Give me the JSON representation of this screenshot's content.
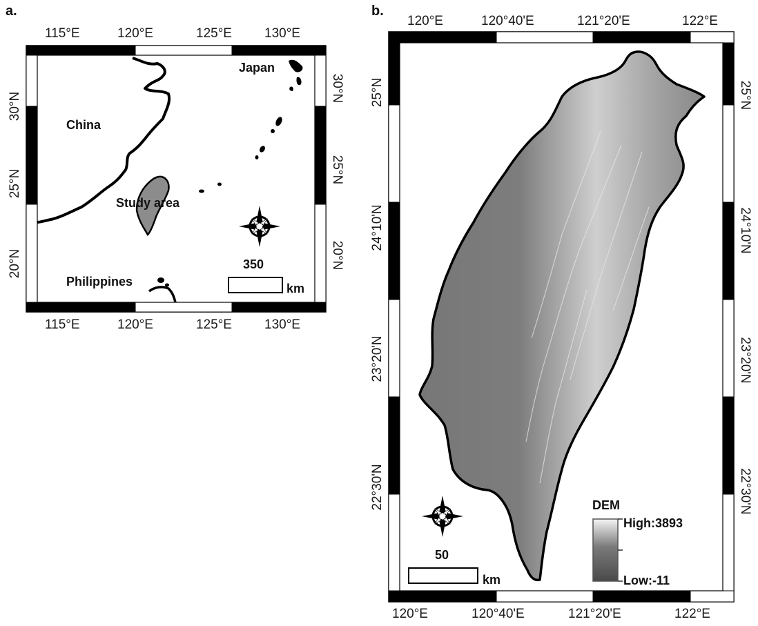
{
  "panel_a": {
    "label": "a.",
    "top_ticks": [
      "115°E",
      "120°E",
      "125°E",
      "130°E"
    ],
    "bottom_ticks": [
      "115°E",
      "120°E",
      "125°E",
      "130°E"
    ],
    "left_ticks": [
      "30°N",
      "25°N",
      "20°N"
    ],
    "right_ticks": [
      "30°N",
      "25°N",
      "20°N"
    ],
    "places": {
      "china": "China",
      "japan": "Japan",
      "study_area": "Study area",
      "philippines": "Philippines"
    },
    "scale_value": "350",
    "scale_unit": "km"
  },
  "panel_b": {
    "label": "b.",
    "top_ticks": [
      "120°E",
      "120°40'E",
      "121°20'E",
      "122°E"
    ],
    "bottom_ticks": [
      "120°E",
      "120°40'E",
      "121°20'E",
      "122°E"
    ],
    "left_ticks": [
      "25°N",
      "24°10'N",
      "23°20'N",
      "22°30'N"
    ],
    "right_ticks": [
      "25°N",
      "24°10'N",
      "23°20'N",
      "22°30'N"
    ],
    "scale_value": "50",
    "scale_unit": "km",
    "legend": {
      "title": "DEM",
      "high": "High:3893",
      "low": "Low:-11"
    }
  }
}
